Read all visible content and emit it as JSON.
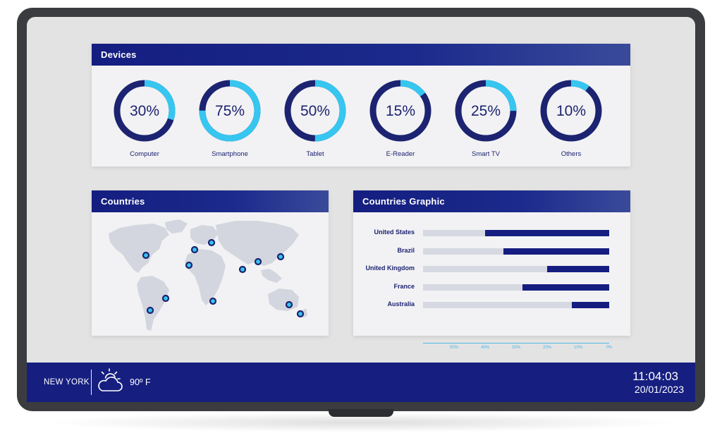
{
  "devices": {
    "title": "Devices",
    "colors": {
      "ring_track": "#1c2370",
      "ring_fill": "#36c6f0"
    },
    "items": [
      {
        "label": "Computer",
        "value": 30,
        "display": "30%"
      },
      {
        "label": "Smartphone",
        "value": 75,
        "display": "75%"
      },
      {
        "label": "Tablet",
        "value": 50,
        "display": "50%"
      },
      {
        "label": "E-Reader",
        "value": 15,
        "display": "15%"
      },
      {
        "label": "Smart TV",
        "value": 25,
        "display": "25%"
      },
      {
        "label": "Others",
        "value": 10,
        "display": "10%"
      }
    ]
  },
  "countries": {
    "title": "Countries",
    "icon": "world-map"
  },
  "countries_graphic": {
    "title": "Countries Graphic"
  },
  "chart_data": {
    "type": "bar",
    "orientation": "horizontal",
    "title": "Countries Graphic",
    "categories": [
      "United States",
      "Brazil",
      "United Kingdom",
      "France",
      "Australia"
    ],
    "values": [
      40,
      34,
      20,
      28,
      12
    ],
    "x_ticks": [
      "50%",
      "40%",
      "30%",
      "20%",
      "10%",
      "0%"
    ],
    "xlim": [
      60,
      0
    ],
    "colors": {
      "bar": "#151d80",
      "track": "#d6d8e2",
      "axis": "#4bb8e8"
    },
    "grid": false
  },
  "footer": {
    "city": "NEW YORK",
    "weather_icon": "partly-cloudy-icon",
    "temperature": "90º F",
    "time": "11:04:03",
    "date": "20/01/2023"
  }
}
